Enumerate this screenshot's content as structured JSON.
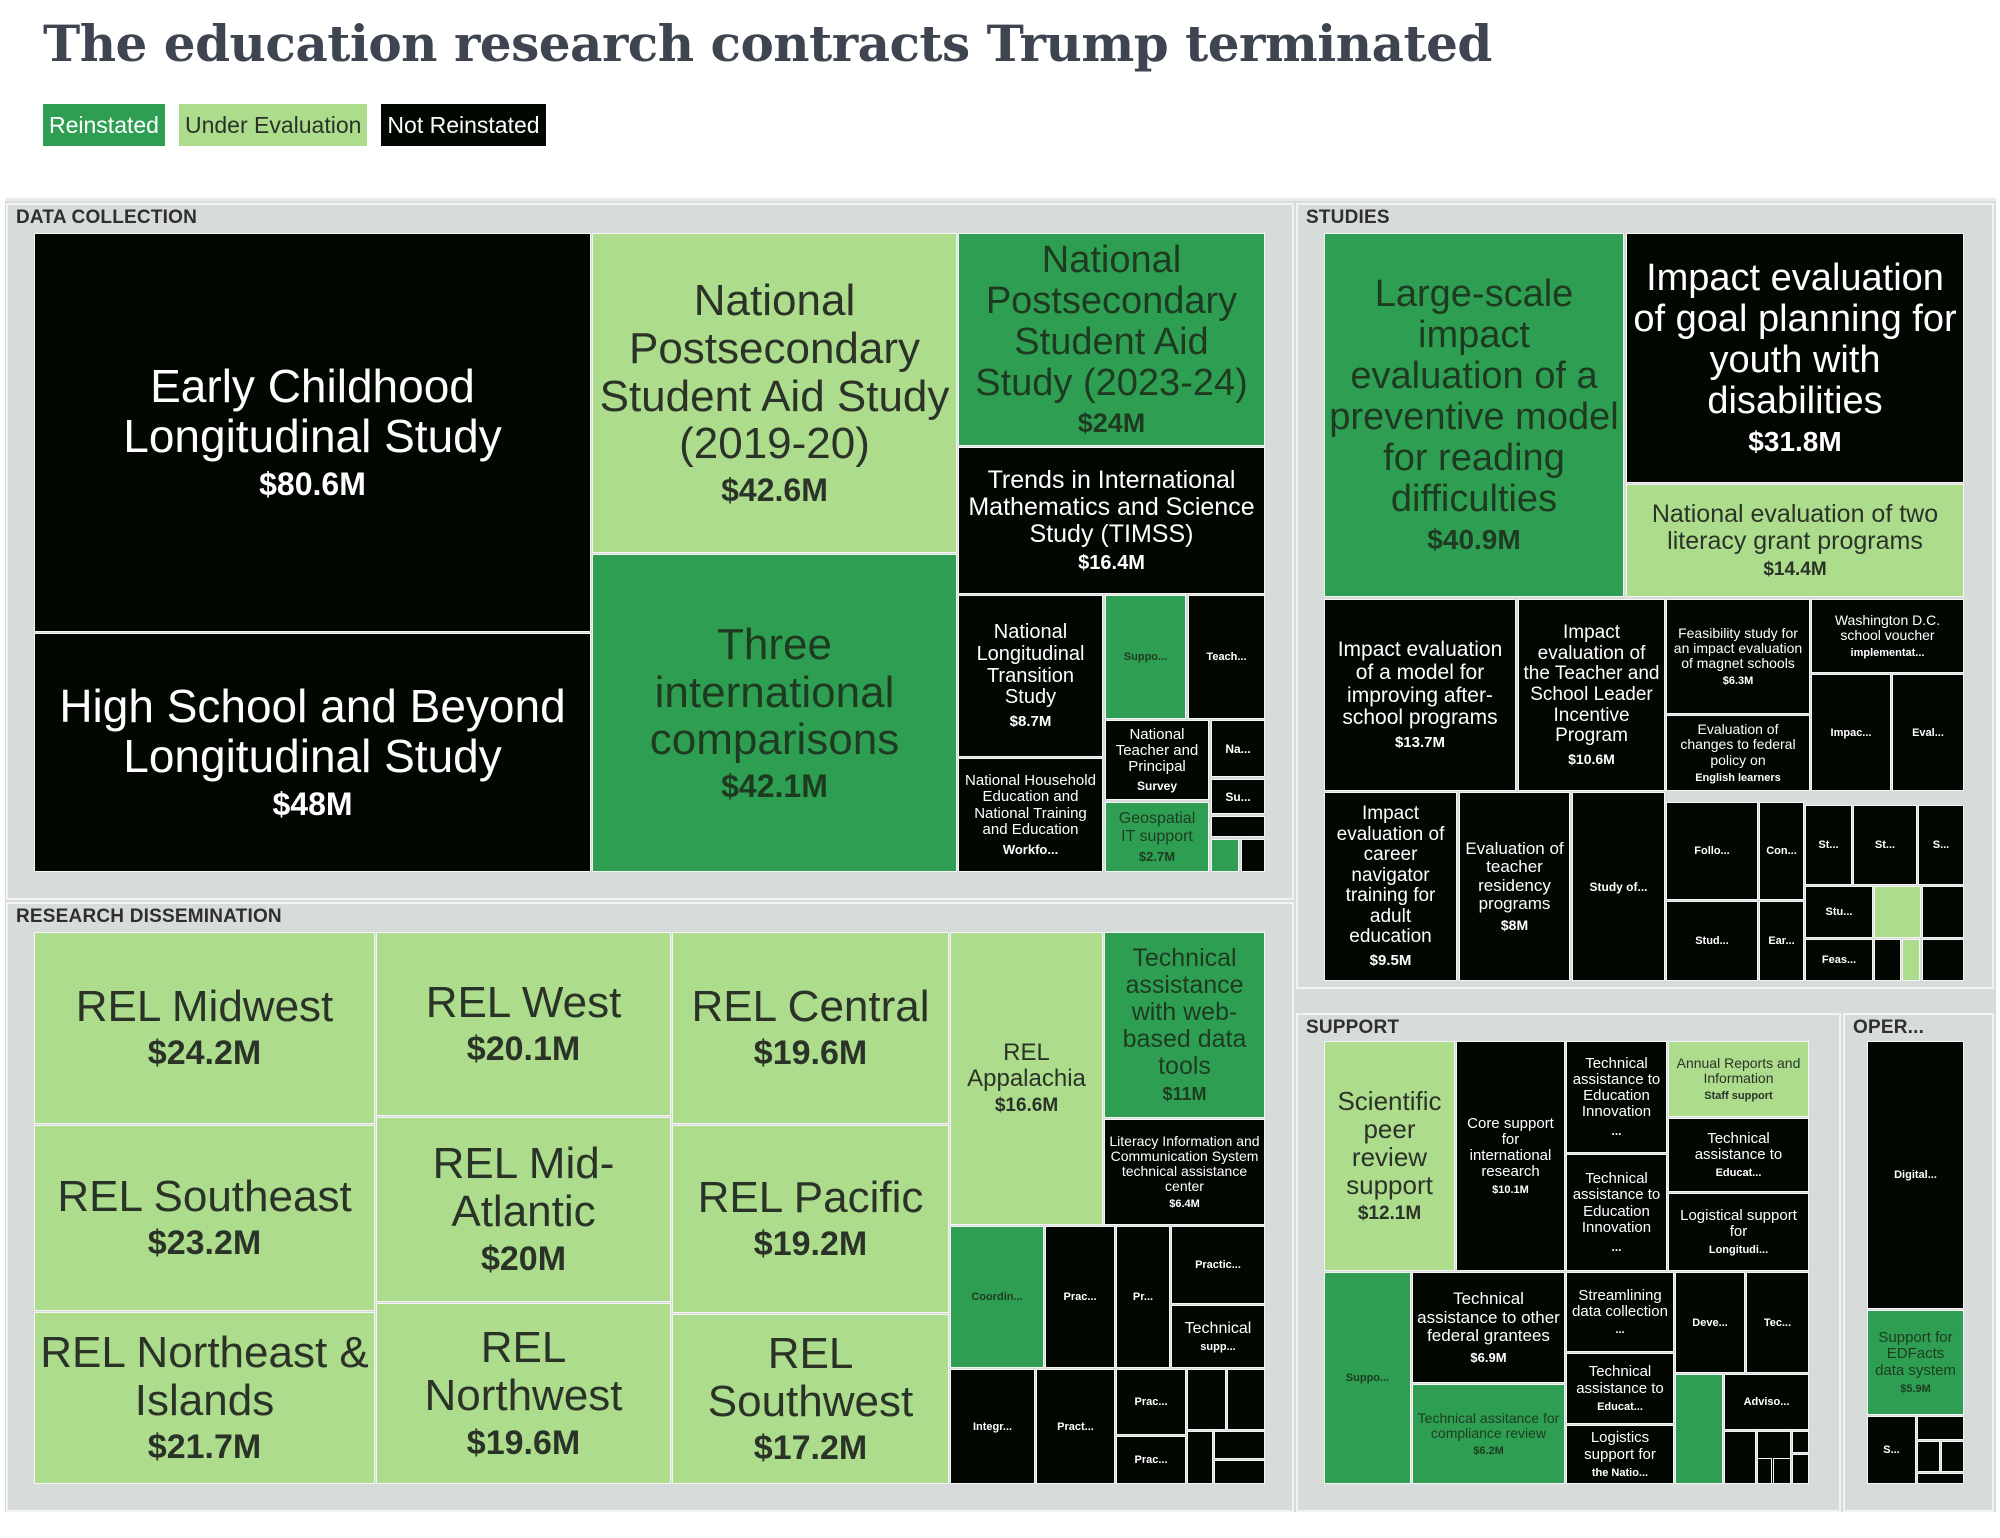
{
  "chart_data": {
    "type": "treemap",
    "title": "The education research contracts Trump terminated",
    "value_unit": "USD millions",
    "legend": {
      "placement": "top-left",
      "entries": [
        {
          "key": "reinstated",
          "label": "Reinstated",
          "color": "#2e9f52",
          "text_color": "#ffffff"
        },
        {
          "key": "under_evaluation",
          "label": "Under Evaluation",
          "color": "#acdc8c",
          "text_color": "#2b3329"
        },
        {
          "key": "not_reinstated",
          "label": "Not Reinstated",
          "color": "#020702",
          "text_color": "#ffffff"
        }
      ]
    },
    "sections": [
      {
        "label": "DATA COLLECTION",
        "tiles": [
          {
            "name": "Early Childhood Longitudinal Study",
            "value_label": "$80.6M",
            "value": 80.6,
            "status": "not_reinstated"
          },
          {
            "name": "High School and Beyond Longitudinal Study",
            "value_label": "$48M",
            "value": 48,
            "status": "not_reinstated"
          },
          {
            "name": "National Postsecondary Student Aid Study (2019-20)",
            "value_label": "$42.6M",
            "value": 42.6,
            "status": "under_evaluation"
          },
          {
            "name": "Three international comparisons",
            "value_label": "$42.1M",
            "value": 42.1,
            "status": "reinstated"
          },
          {
            "name": "National Postsecondary Student Aid Study (2023-24)",
            "value_label": "$24M",
            "value": 24,
            "status": "reinstated"
          },
          {
            "name": "Trends in International Mathematics and Science Study (TIMSS)",
            "value_label": "$16.4M",
            "value": 16.4,
            "status": "not_reinstated"
          },
          {
            "name": "National Longitudinal Transition Study",
            "value_label": "$8.7M",
            "value": 8.7,
            "status": "not_reinstated"
          },
          {
            "name": "National Household Education and National Training and Education",
            "value_label": "Workfo...",
            "value": null,
            "status": "not_reinstated"
          },
          {
            "name": "",
            "value_label": "Suppo...",
            "value": null,
            "status": "reinstated"
          },
          {
            "name": "",
            "value_label": "Teach...",
            "value": null,
            "status": "not_reinstated"
          },
          {
            "name": "National Teacher and Principal",
            "value_label": "Survey",
            "value": null,
            "status": "not_reinstated"
          },
          {
            "name": "Geospatial IT support",
            "value_label": "$2.7M",
            "value": 2.7,
            "status": "reinstated"
          },
          {
            "name": "",
            "value_label": "Na...",
            "value": null,
            "status": "not_reinstated"
          },
          {
            "name": "",
            "value_label": "Su...",
            "value": null,
            "status": "not_reinstated"
          },
          {
            "name": "",
            "value_label": "",
            "value": null,
            "status": "not_reinstated"
          },
          {
            "name": "",
            "value_label": "",
            "value": null,
            "status": "reinstated"
          },
          {
            "name": "",
            "value_label": "",
            "value": null,
            "status": "not_reinstated"
          }
        ]
      },
      {
        "label": "STUDIES",
        "tiles": [
          {
            "name": "Large-scale impact evaluation of a preventive model for reading difficulties",
            "value_label": "$40.9M",
            "value": 40.9,
            "status": "reinstated"
          },
          {
            "name": "Impact evaluation of goal planning for youth with disabilities",
            "value_label": "$31.8M",
            "value": 31.8,
            "status": "not_reinstated"
          },
          {
            "name": "National evaluation of two literacy grant programs",
            "value_label": "$14.4M",
            "value": 14.4,
            "status": "under_evaluation"
          },
          {
            "name": "Impact evaluation of a model for improving after-school programs",
            "value_label": "$13.7M",
            "value": 13.7,
            "status": "not_reinstated"
          },
          {
            "name": "Impact evaluation of the Teacher and School Leader Incentive Program",
            "value_label": "$10.6M",
            "value": 10.6,
            "status": "not_reinstated"
          },
          {
            "name": "Feasibility study for an impact evaluation of magnet schools",
            "value_label": "$6.3M",
            "value": 6.3,
            "status": "not_reinstated"
          },
          {
            "name": "Washington D.C. school voucher",
            "value_label": "implementat...",
            "value": null,
            "status": "not_reinstated"
          },
          {
            "name": "Evaluation of changes to federal policy on",
            "value_label": "English learners",
            "value": null,
            "status": "not_reinstated"
          },
          {
            "name": "",
            "value_label": "Impac...",
            "value": null,
            "status": "not_reinstated"
          },
          {
            "name": "",
            "value_label": "Eval...",
            "value": null,
            "status": "not_reinstated"
          },
          {
            "name": "Impact evaluation of career navigator training for adult education",
            "value_label": "$9.5M",
            "value": 9.5,
            "status": "not_reinstated"
          },
          {
            "name": "Evaluation of teacher residency programs",
            "value_label": "$8M",
            "value": 8,
            "status": "not_reinstated"
          },
          {
            "name": "",
            "value_label": "Study of...",
            "value": null,
            "status": "not_reinstated"
          },
          {
            "name": "",
            "value_label": "Follo...",
            "value": null,
            "status": "not_reinstated"
          },
          {
            "name": "",
            "value_label": "Con...",
            "value": null,
            "status": "not_reinstated"
          },
          {
            "name": "",
            "value_label": "Stud...",
            "value": null,
            "status": "not_reinstated"
          },
          {
            "name": "",
            "value_label": "Ear...",
            "value": null,
            "status": "not_reinstated"
          },
          {
            "name": "",
            "value_label": "St...",
            "value": null,
            "status": "not_reinstated"
          },
          {
            "name": "",
            "value_label": "St...",
            "value": null,
            "status": "not_reinstated"
          },
          {
            "name": "",
            "value_label": "S...",
            "value": null,
            "status": "not_reinstated"
          },
          {
            "name": "",
            "value_label": "Stu...",
            "value": null,
            "status": "not_reinstated"
          },
          {
            "name": "",
            "value_label": "",
            "value": null,
            "status": "under_evaluation"
          },
          {
            "name": "",
            "value_label": "",
            "value": null,
            "status": "not_reinstated"
          },
          {
            "name": "",
            "value_label": "Feas...",
            "value": null,
            "status": "not_reinstated"
          },
          {
            "name": "",
            "value_label": "",
            "value": null,
            "status": "not_reinstated"
          },
          {
            "name": "",
            "value_label": "",
            "value": null,
            "status": "under_evaluation"
          },
          {
            "name": "",
            "value_label": "",
            "value": null,
            "status": "not_reinstated"
          }
        ]
      },
      {
        "label": "RESEARCH DISSEMINATION",
        "tiles": [
          {
            "name": "REL Midwest",
            "value_label": "$24.2M",
            "value": 24.2,
            "status": "under_evaluation"
          },
          {
            "name": "REL Southeast",
            "value_label": "$23.2M",
            "value": 23.2,
            "status": "under_evaluation"
          },
          {
            "name": "REL Northeast & Islands",
            "value_label": "$21.7M",
            "value": 21.7,
            "status": "under_evaluation"
          },
          {
            "name": "REL West",
            "value_label": "$20.1M",
            "value": 20.1,
            "status": "under_evaluation"
          },
          {
            "name": "REL Mid-Atlantic",
            "value_label": "$20M",
            "value": 20,
            "status": "under_evaluation"
          },
          {
            "name": "REL Northwest",
            "value_label": "$19.6M",
            "value": 19.6,
            "status": "under_evaluation"
          },
          {
            "name": "REL Central",
            "value_label": "$19.6M",
            "value": 19.6,
            "status": "under_evaluation"
          },
          {
            "name": "REL Pacific",
            "value_label": "$19.2M",
            "value": 19.2,
            "status": "under_evaluation"
          },
          {
            "name": "REL Southwest",
            "value_label": "$17.2M",
            "value": 17.2,
            "status": "under_evaluation"
          },
          {
            "name": "REL Appalachia",
            "value_label": "$16.6M",
            "value": 16.6,
            "status": "under_evaluation"
          },
          {
            "name": "Technical assistance with web-based data tools",
            "value_label": "$11M",
            "value": 11,
            "status": "reinstated"
          },
          {
            "name": "Literacy Information and Communication System technical assistance center",
            "value_label": "$6.4M",
            "value": 6.4,
            "status": "not_reinstated"
          },
          {
            "name": "",
            "value_label": "Coordin...",
            "value": null,
            "status": "reinstated"
          },
          {
            "name": "",
            "value_label": "Prac...",
            "value": null,
            "status": "not_reinstated"
          },
          {
            "name": "",
            "value_label": "Pr...",
            "value": null,
            "status": "not_reinstated"
          },
          {
            "name": "",
            "value_label": "Practic...",
            "value": null,
            "status": "not_reinstated"
          },
          {
            "name": "Technical",
            "value_label": "supp...",
            "value": null,
            "status": "not_reinstated"
          },
          {
            "name": "",
            "value_label": "Integr...",
            "value": null,
            "status": "not_reinstated"
          },
          {
            "name": "",
            "value_label": "Pract...",
            "value": null,
            "status": "not_reinstated"
          },
          {
            "name": "",
            "value_label": "Prac...",
            "value": null,
            "status": "not_reinstated"
          },
          {
            "name": "",
            "value_label": "Prac...",
            "value": null,
            "status": "not_reinstated"
          },
          {
            "name": "",
            "value_label": "",
            "value": null,
            "status": "not_reinstated"
          },
          {
            "name": "",
            "value_label": "",
            "value": null,
            "status": "not_reinstated"
          },
          {
            "name": "",
            "value_label": "",
            "value": null,
            "status": "not_reinstated"
          },
          {
            "name": "",
            "value_label": "",
            "value": null,
            "status": "not_reinstated"
          },
          {
            "name": "",
            "value_label": "",
            "value": null,
            "status": "not_reinstated"
          }
        ]
      },
      {
        "label": "SUPPORT",
        "tiles": [
          {
            "name": "Scientific peer review support",
            "value_label": "$12.1M",
            "value": 12.1,
            "status": "under_evaluation"
          },
          {
            "name": "Core support for international research",
            "value_label": "$10.1M",
            "value": 10.1,
            "status": "not_reinstated"
          },
          {
            "name": "Technical assistance to Education Innovation",
            "value_label": "...",
            "value": null,
            "status": "not_reinstated"
          },
          {
            "name": "Technical assistance to Education Innovation",
            "value_label": "...",
            "value": null,
            "status": "not_reinstated"
          },
          {
            "name": "Annual Reports and Information",
            "value_label": "Staff support",
            "value": null,
            "status": "under_evaluation"
          },
          {
            "name": "Technical assistance to",
            "value_label": "Educat...",
            "value": null,
            "status": "not_reinstated"
          },
          {
            "name": "Logistical support for",
            "value_label": "Longitudi...",
            "value": null,
            "status": "not_reinstated"
          },
          {
            "name": "",
            "value_label": "Suppo...",
            "value": null,
            "status": "reinstated"
          },
          {
            "name": "Technical assistance to other federal grantees",
            "value_label": "$6.9M",
            "value": 6.9,
            "status": "not_reinstated"
          },
          {
            "name": "Technical assitance for compliance review",
            "value_label": "$6.2M",
            "value": 6.2,
            "status": "reinstated"
          },
          {
            "name": "Streamlining data collection",
            "value_label": "...",
            "value": null,
            "status": "not_reinstated"
          },
          {
            "name": "Technical assistance to",
            "value_label": "Educat...",
            "value": null,
            "status": "not_reinstated"
          },
          {
            "name": "Logistics support for",
            "value_label": "the Natio...",
            "value": null,
            "status": "not_reinstated"
          },
          {
            "name": "",
            "value_label": "Deve...",
            "value": null,
            "status": "not_reinstated"
          },
          {
            "name": "",
            "value_label": "Tec...",
            "value": null,
            "status": "not_reinstated"
          },
          {
            "name": "",
            "value_label": "",
            "value": null,
            "status": "reinstated"
          },
          {
            "name": "",
            "value_label": "Adviso...",
            "value": null,
            "status": "not_reinstated"
          },
          {
            "name": "",
            "value_label": "",
            "value": null,
            "status": "not_reinstated"
          },
          {
            "name": "",
            "value_label": "",
            "value": null,
            "status": "not_reinstated"
          },
          {
            "name": "",
            "value_label": "",
            "value": null,
            "status": "not_reinstated"
          },
          {
            "name": "",
            "value_label": "",
            "value": null,
            "status": "not_reinstated"
          },
          {
            "name": "",
            "value_label": "",
            "value": null,
            "status": "not_reinstated"
          },
          {
            "name": "",
            "value_label": "",
            "value": null,
            "status": "not_reinstated"
          }
        ]
      },
      {
        "label": "OPER...",
        "tiles": [
          {
            "name": "",
            "value_label": "Digital...",
            "value": null,
            "status": "not_reinstated"
          },
          {
            "name": "Support for EDFacts data system",
            "value_label": "$5.9M",
            "value": 5.9,
            "status": "reinstated"
          },
          {
            "name": "",
            "value_label": "S...",
            "value": null,
            "status": "not_reinstated"
          },
          {
            "name": "",
            "value_label": "",
            "value": null,
            "status": "not_reinstated"
          },
          {
            "name": "",
            "value_label": "",
            "value": null,
            "status": "not_reinstated"
          },
          {
            "name": "",
            "value_label": "",
            "value": null,
            "status": "not_reinstated"
          },
          {
            "name": "",
            "value_label": "",
            "value": null,
            "status": "not_reinstated"
          }
        ]
      }
    ]
  }
}
